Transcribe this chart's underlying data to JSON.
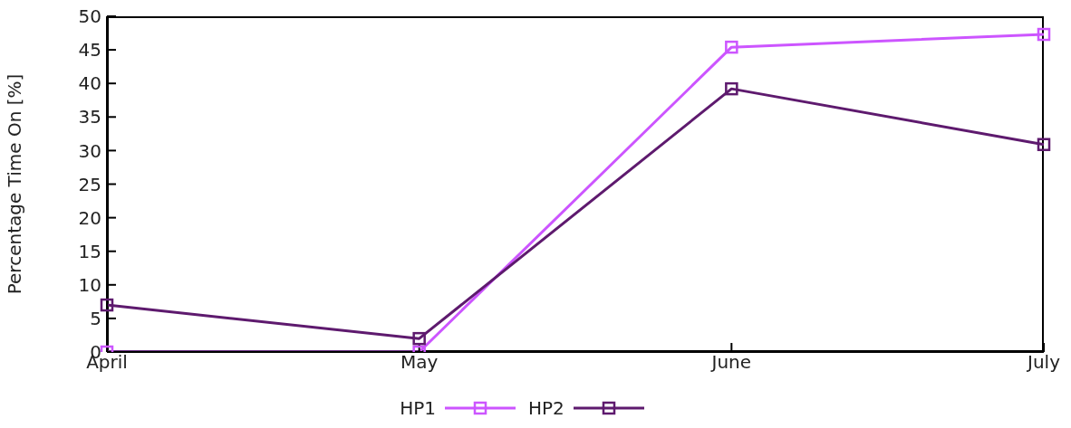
{
  "chart_data": {
    "type": "line",
    "ylabel": "Percentage Time On [%]",
    "categories": [
      "April",
      "May",
      "June",
      "July"
    ],
    "series": [
      {
        "name": "HP1",
        "color": "#cc55ff",
        "values": [
          0,
          0,
          45.4,
          47.3
        ]
      },
      {
        "name": "HP2",
        "color": "#5e1a6e",
        "values": [
          7.0,
          2.0,
          39.2,
          30.9
        ]
      }
    ],
    "ylim": [
      0,
      50
    ],
    "yticks": [
      0,
      5,
      10,
      15,
      20,
      25,
      30,
      35,
      40,
      45,
      50
    ],
    "grid": false,
    "legend": "bottom",
    "marker": "square",
    "line_style": "solid"
  }
}
